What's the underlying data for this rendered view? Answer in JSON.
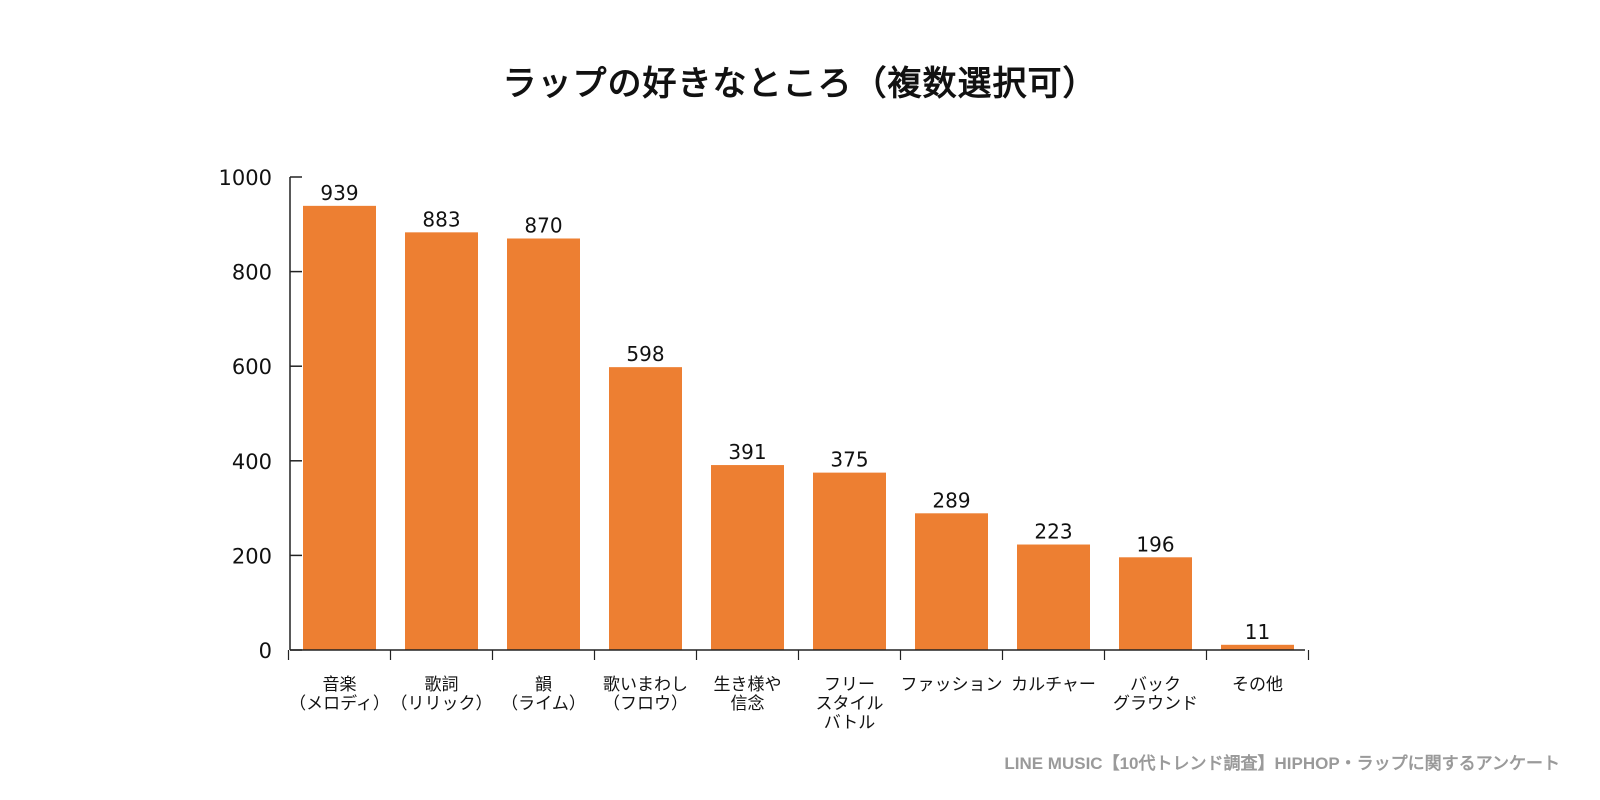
{
  "colors": {
    "bar": "#ed7f32",
    "axis": "#222222",
    "text": "#111111",
    "source": "#9a9a9a"
  },
  "chart_data": {
    "type": "bar",
    "title": "ラップの好きなところ（複数選択可）",
    "xlabel": "",
    "ylabel": "",
    "ylim": [
      0,
      1000
    ],
    "yticks": [
      0,
      200,
      400,
      600,
      800,
      1000
    ],
    "grid": false,
    "categories": [
      [
        "音楽",
        "（メロディ）"
      ],
      [
        "歌詞",
        "（リリック）"
      ],
      [
        "韻",
        "（ライム）"
      ],
      [
        "歌いまわし",
        "（フロウ）"
      ],
      [
        "生き様や",
        "信念"
      ],
      [
        "フリー",
        "スタイル",
        "バトル"
      ],
      [
        "ファッション"
      ],
      [
        "カルチャー"
      ],
      [
        "バック",
        "グラウンド"
      ],
      [
        "その他"
      ]
    ],
    "values": [
      939,
      883,
      870,
      598,
      391,
      375,
      289,
      223,
      196,
      11
    ]
  },
  "source": "LINE MUSIC【10代トレンド調査】HIPHOP・ラップに関するアンケート"
}
